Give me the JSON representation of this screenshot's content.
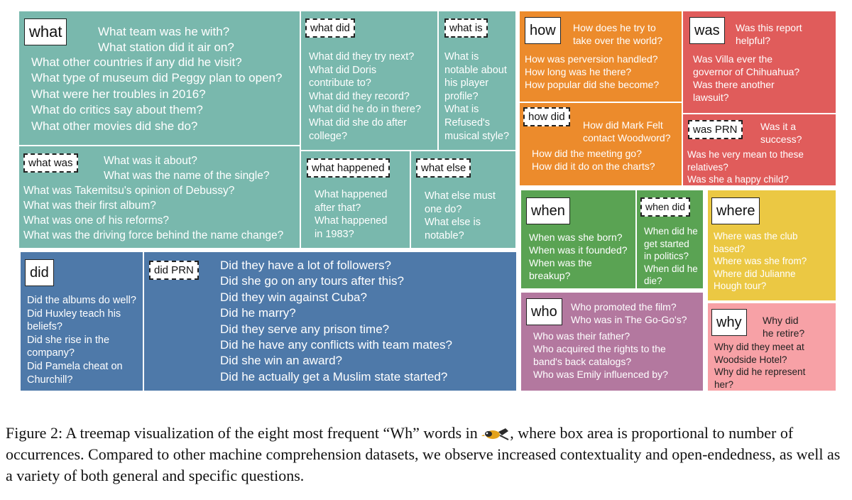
{
  "treemap": {
    "what": {
      "label": "what",
      "q1": "What team was he with?\nWhat station did it air on?",
      "q2": "What other countries if any did he visit?\nWhat type of museum did Peggy plan to open?\nWhat were her troubles in 2016?\nWhat do critics say about them?\nWhat other movies did she do?"
    },
    "what_did": {
      "label": "what did",
      "q": "What did they try next?\nWhat did Doris\ncontribute to?\nWhat did they record?\nWhat did he do in there?\nWhat did she do after\ncollege?"
    },
    "what_is": {
      "label": "what is",
      "q": "What is\nnotable about\nhis player\nprofile?\nWhat is\nRefused's\nmusical style?"
    },
    "what_was": {
      "label": "what was",
      "q1": "What was it about?\nWhat was the name of the single?",
      "q2": "What was Takemitsu's opinion of Debussy?\nWhat was their first album?\nWhat was one of his reforms?\nWhat was the driving force behind the name change?"
    },
    "what_happened": {
      "label": "what happened",
      "q": "What happened\nafter that?\nWhat happened\nin 1983?"
    },
    "what_else": {
      "label": "what else",
      "q": "What else must\none do?\nWhat else is\nnotable?"
    },
    "how": {
      "label": "how",
      "q1": "How does he try to\ntake over the world?",
      "q2": "How was perversion handled?\nHow long was he there?\nHow popular did she become?"
    },
    "how_did": {
      "label": "how did",
      "q1": "How did Mark Felt\ncontact Woodword?",
      "q2": "How did the meeting go?\nHow did it do on the charts?"
    },
    "was": {
      "label": "was",
      "q1": "Was this report\nhelpful?",
      "q2": "Was Villa ever the\ngovernor of Chihuahua?\nWas there another\nlawsuit?"
    },
    "was_prn": {
      "label": "was PRN",
      "q1": "Was it a\nsuccess?",
      "q2": "Was he very mean to these\nrelatives?\nWas she a happy child?"
    },
    "when": {
      "label": "when",
      "q": "When was she born?\nWhen was it founded?\nWhen was the\nbreakup?"
    },
    "when_did": {
      "label": "when did",
      "q": "When did he\nget started\nin politics?\nWhen did he\ndie?"
    },
    "where": {
      "label": "where",
      "q": "Where was the club\nbased?\nWhere was she from?\nWhere did Julianne\nHough tour?"
    },
    "who": {
      "label": "who",
      "q1": "Who promoted the film?\nWho was in The Go-Go's?",
      "q2": "Who was their father?\nWho acquired the rights to the\nband's back catalogs?\nWho was Emily influenced by?"
    },
    "why": {
      "label": "why",
      "q1": "Why did\nhe retire?",
      "q2": "Why did they meet at\nWoodside Hotel?\nWhy did he represent\nher?"
    },
    "did": {
      "label": "did",
      "q": "Did the albums do well?\nDid Huxley teach his\nbeliefs?\nDid she rise in the\ncompany?\nDid Pamela cheat on\nChurchill?"
    },
    "did_prn": {
      "label": "did PRN",
      "q": "Did they have a lot of followers?\nDid she go on any tours after this?\nDid they win against Cuba?\nDid he marry?\nDid they serve any prison time?\nDid he have any conflicts with team mates?\nDid she win an award?\nDid he actually get a Muslim state started?"
    }
  },
  "caption": {
    "before": "Figure 2: A treemap visualization of the eight most frequent “Wh” words in ",
    "after": ", where box area is proportional to number of occurrences. Compared to other machine comprehension datasets, we observe increased contextuality and open-endedness, as well as a variety of both general and specific questions."
  },
  "colors": {
    "what": "#79b8ad",
    "how": "#ec8b2c",
    "was": "#e05c5b",
    "when": "#5aa353",
    "where": "#ebc843",
    "who": "#b3789f",
    "why": "#f7a1a6",
    "did": "#4e79a9"
  }
}
